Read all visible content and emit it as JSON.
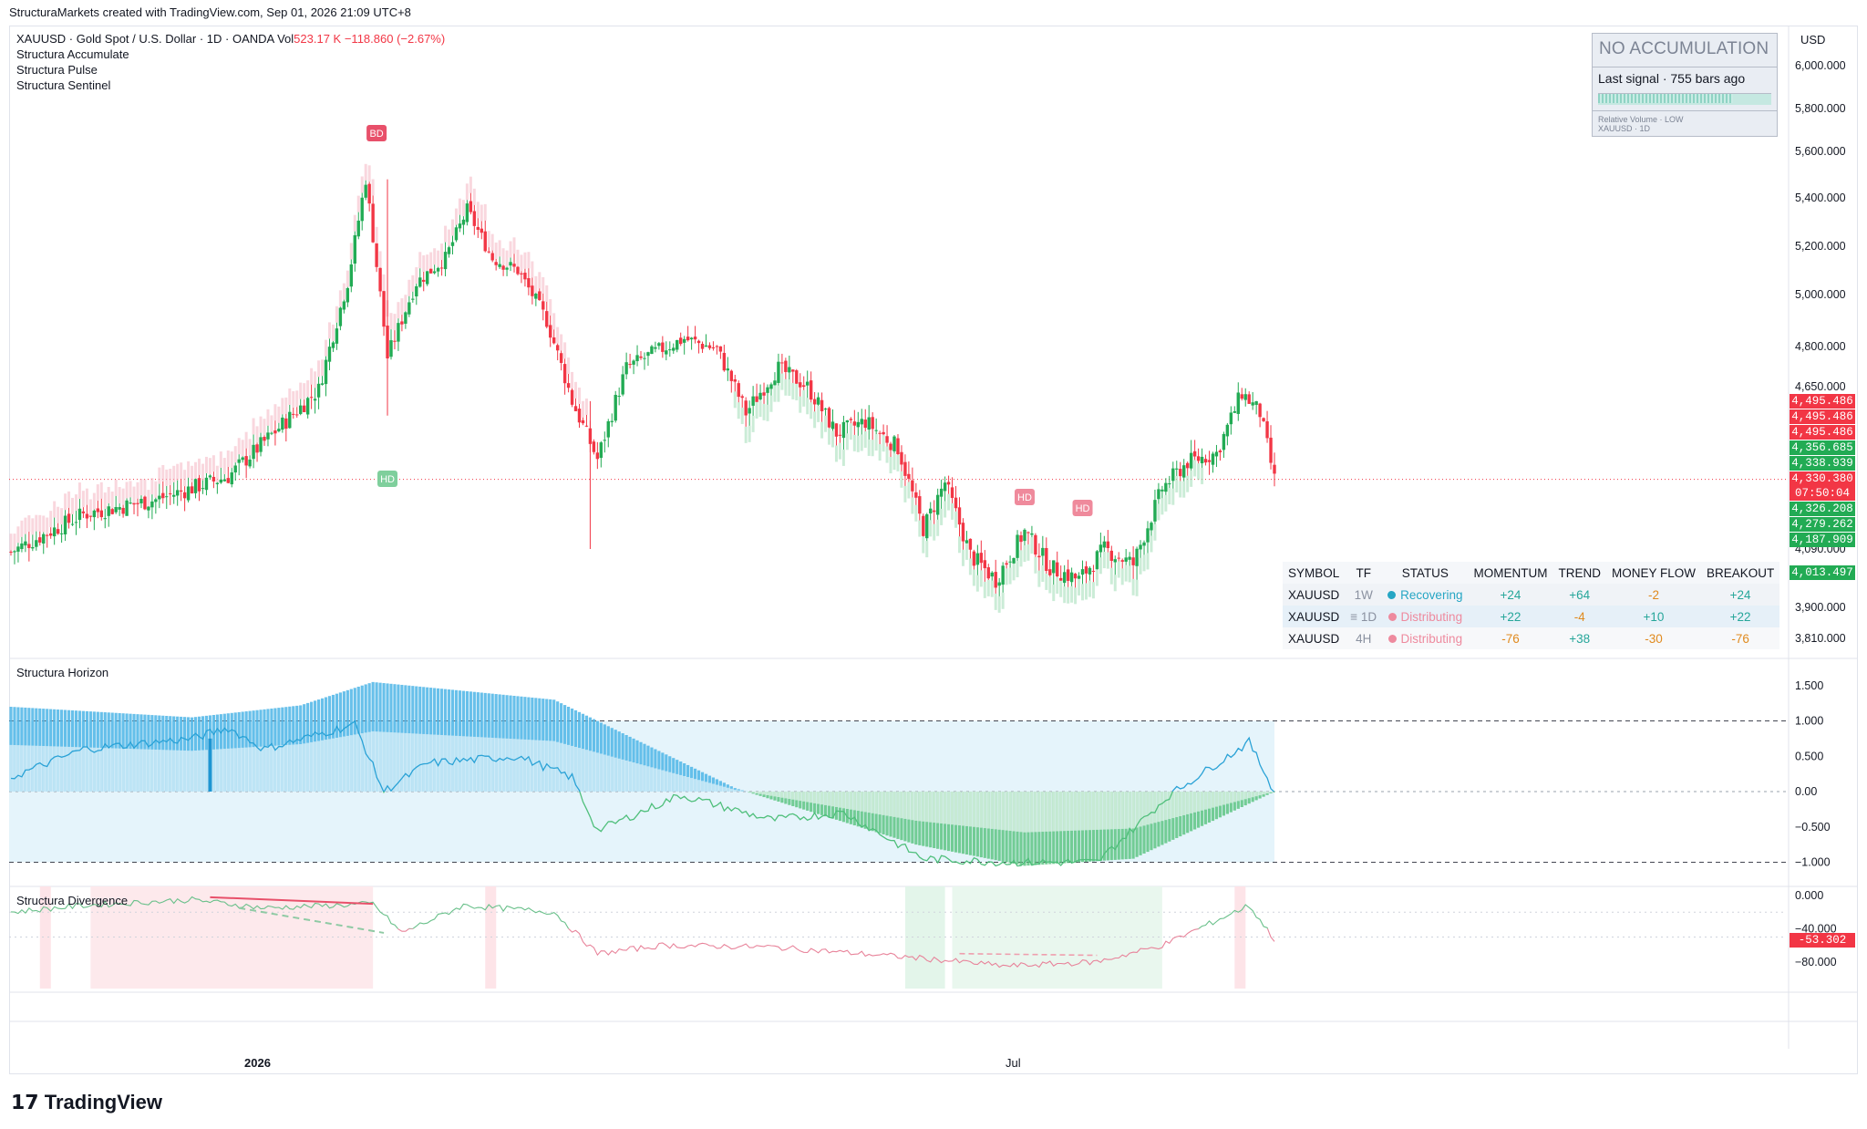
{
  "caption": "StructuraMarkets created with TradingView.com, Sep 01, 2026 21:09 UTC+8",
  "legend": {
    "symbol_line": "XAUUSD · Gold Spot / U.S. Dollar · 1D · OANDA",
    "vol_label": "Vol",
    "vol_value": "523.17 K",
    "change": "−118.860 (−2.67%)",
    "indicators": [
      "Structura Accumulate",
      "Structura Pulse",
      "Structura Sentinel"
    ]
  },
  "currency": "USD",
  "status_box": {
    "title": "NO ACCUMULATION",
    "subtitle": "Last signal · 755 bars ago",
    "footer1": "Relative Volume · LOW",
    "footer2": "XAUUSD · 1D"
  },
  "price_tags": [
    {
      "text": "4,495.486",
      "color": "#f23645"
    },
    {
      "text": "4,495.486",
      "color": "#f23645"
    },
    {
      "text": "4,495.486",
      "color": "#f23645"
    },
    {
      "text": "4,356.685",
      "color": "#22ab54"
    },
    {
      "text": "4,338.939",
      "color": "#22ab54"
    },
    {
      "text": "4,330.380",
      "color": "#f23645"
    },
    {
      "text": "07:50:04",
      "color": "#f23645"
    },
    {
      "text": "4,326.208",
      "color": "#22ab54"
    },
    {
      "text": "4,279.262",
      "color": "#22ab54"
    },
    {
      "text": "4,187.909",
      "color": "#22ab54"
    },
    {
      "text": "4,013.497",
      "color": "#22ab54"
    }
  ],
  "signal_table": {
    "headers": [
      "SYMBOL",
      "TF",
      "STATUS",
      "MOMENTUM",
      "TREND",
      "MONEY FLOW",
      "BREAKOUT"
    ],
    "rows": [
      {
        "symbol": "XAUUSD",
        "tf": "1W",
        "status": "Recovering",
        "status_color": "#26a6c4",
        "momentum": "+24",
        "trend": "+64",
        "money_flow": "-2",
        "breakout": "+24"
      },
      {
        "symbol": "XAUUSD",
        "tf": "≡ 1D",
        "status": "Distributing",
        "status_color": "#ee8a9e",
        "momentum": "+22",
        "trend": "-4",
        "money_flow": "+10",
        "breakout": "+22"
      },
      {
        "symbol": "XAUUSD",
        "tf": "4H",
        "status": "Distributing",
        "status_color": "#ee8a9e",
        "momentum": "-76",
        "trend": "+38",
        "money_flow": "-30",
        "breakout": "-76"
      }
    ]
  },
  "markers": [
    {
      "text": "BD",
      "color": "#e8506a"
    },
    {
      "text": "HD",
      "color": "#7fcf9c"
    },
    {
      "text": "HD",
      "color": "#ef8a9c"
    },
    {
      "text": "HD",
      "color": "#ef8a9c"
    }
  ],
  "pane_titles": {
    "horizon": "Structura Horizon",
    "divergence": "Structura Divergence"
  },
  "divergence_last": "-53.302",
  "x_labels": [
    "2026",
    "Jul"
  ],
  "logo": "TradingView",
  "chart_data": [
    {
      "type": "candlestick",
      "title": "XAUUSD · Gold Spot / U.S. Dollar · 1D · OANDA",
      "y_ticks": [
        "6,000.000",
        "5,800.000",
        "5,600.000",
        "5,400.000",
        "5,200.000",
        "5,000.000",
        "4,800.000",
        "4,650.000",
        "4,090.000",
        "3,900.000",
        "3,810.000"
      ],
      "ylim": [
        3810,
        6000
      ],
      "current_price": 4330.38,
      "key_points": [
        {
          "x": 0,
          "close": 4080
        },
        {
          "x": 20,
          "close": 4210
        },
        {
          "x": 40,
          "close": 4260
        },
        {
          "x": 60,
          "close": 4340
        },
        {
          "x": 75,
          "close": 4520
        },
        {
          "x": 85,
          "close": 4640
        },
        {
          "x": 93,
          "close": 5050
        },
        {
          "x": 98,
          "close": 5480
        },
        {
          "x": 104,
          "close": 4760
        },
        {
          "x": 112,
          "close": 5050
        },
        {
          "x": 120,
          "close": 5150
        },
        {
          "x": 126,
          "close": 5350
        },
        {
          "x": 133,
          "close": 5150
        },
        {
          "x": 140,
          "close": 5100
        },
        {
          "x": 148,
          "close": 4900
        },
        {
          "x": 155,
          "close": 4600
        },
        {
          "x": 162,
          "close": 4400
        },
        {
          "x": 170,
          "close": 4720
        },
        {
          "x": 178,
          "close": 4780
        },
        {
          "x": 186,
          "close": 4830
        },
        {
          "x": 195,
          "close": 4790
        },
        {
          "x": 203,
          "close": 4560
        },
        {
          "x": 212,
          "close": 4720
        },
        {
          "x": 220,
          "close": 4650
        },
        {
          "x": 228,
          "close": 4490
        },
        {
          "x": 236,
          "close": 4530
        },
        {
          "x": 245,
          "close": 4440
        },
        {
          "x": 252,
          "close": 4160
        },
        {
          "x": 258,
          "close": 4320
        },
        {
          "x": 265,
          "close": 4070
        },
        {
          "x": 272,
          "close": 3990
        },
        {
          "x": 280,
          "close": 4150
        },
        {
          "x": 287,
          "close": 4030
        },
        {
          "x": 295,
          "close": 3990
        },
        {
          "x": 302,
          "close": 4090
        },
        {
          "x": 310,
          "close": 4040
        },
        {
          "x": 318,
          "close": 4300
        },
        {
          "x": 325,
          "close": 4390
        },
        {
          "x": 333,
          "close": 4420
        },
        {
          "x": 340,
          "close": 4630
        },
        {
          "x": 345,
          "close": 4560
        },
        {
          "x": 349,
          "close": 4330
        }
      ]
    },
    {
      "type": "area",
      "title": "Structura Horizon",
      "y_ticks": [
        "1.500",
        "1.000",
        "0.500",
        "0.00",
        "−0.500",
        "−1.000"
      ],
      "ylim": [
        -1.0,
        1.5
      ],
      "bands": [
        -1.0,
        1.0
      ],
      "histogram_key_points": [
        {
          "x": 0,
          "y": 1.2
        },
        {
          "x": 50,
          "y": 1.05
        },
        {
          "x": 80,
          "y": 1.22
        },
        {
          "x": 100,
          "y": 1.55
        },
        {
          "x": 150,
          "y": 1.3
        },
        {
          "x": 200,
          "y": 0.05
        },
        {
          "x": 250,
          "y": -0.75
        },
        {
          "x": 280,
          "y": -1.05
        },
        {
          "x": 310,
          "y": -0.95
        },
        {
          "x": 349,
          "y": 0.0
        }
      ],
      "line_key_points": [
        {
          "x": 0,
          "y": 0.2
        },
        {
          "x": 20,
          "y": 0.6
        },
        {
          "x": 50,
          "y": 0.75
        },
        {
          "x": 60,
          "y": 0.9
        },
        {
          "x": 70,
          "y": 0.6
        },
        {
          "x": 95,
          "y": 0.95
        },
        {
          "x": 103,
          "y": 0.0
        },
        {
          "x": 115,
          "y": 0.4
        },
        {
          "x": 140,
          "y": 0.5
        },
        {
          "x": 155,
          "y": 0.2
        },
        {
          "x": 162,
          "y": -0.55
        },
        {
          "x": 185,
          "y": -0.05
        },
        {
          "x": 210,
          "y": -0.4
        },
        {
          "x": 230,
          "y": -0.3
        },
        {
          "x": 252,
          "y": -0.95
        },
        {
          "x": 275,
          "y": -1.0
        },
        {
          "x": 300,
          "y": -1.0
        },
        {
          "x": 320,
          "y": -0.05
        },
        {
          "x": 342,
          "y": 0.7
        },
        {
          "x": 349,
          "y": 0.0
        }
      ]
    },
    {
      "type": "line",
      "title": "Structura Divergence",
      "y_ticks": [
        "0.000",
        "−40.000",
        "−80.000"
      ],
      "ylim": [
        -95,
        10
      ],
      "last_value": -53.302,
      "key_points": [
        {
          "x": 0,
          "y": -20
        },
        {
          "x": 20,
          "y": -12
        },
        {
          "x": 50,
          "y": -5
        },
        {
          "x": 70,
          "y": -15
        },
        {
          "x": 100,
          "y": -10
        },
        {
          "x": 108,
          "y": -45
        },
        {
          "x": 125,
          "y": -12
        },
        {
          "x": 150,
          "y": -20
        },
        {
          "x": 162,
          "y": -70
        },
        {
          "x": 180,
          "y": -60
        },
        {
          "x": 210,
          "y": -62
        },
        {
          "x": 250,
          "y": -75
        },
        {
          "x": 275,
          "y": -85
        },
        {
          "x": 300,
          "y": -80
        },
        {
          "x": 318,
          "y": -60
        },
        {
          "x": 342,
          "y": -12
        },
        {
          "x": 349,
          "y": -53
        }
      ]
    }
  ]
}
